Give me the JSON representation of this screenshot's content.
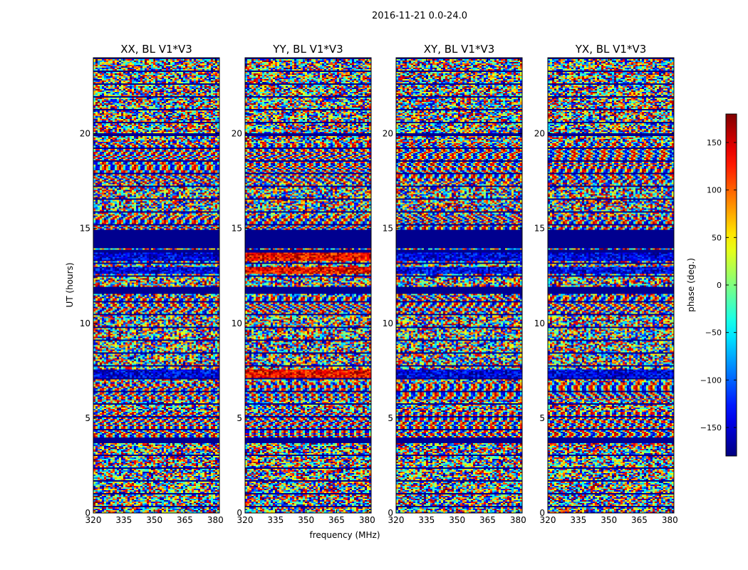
{
  "figure": {
    "suptitle": "2016-11-21 0.0-24.0",
    "xlabel": "frequency (MHz)",
    "ylabel": "UT (hours)",
    "colorbar_label": "phase (deg.)"
  },
  "chart_data": {
    "type": "heatmap",
    "colormap": "jet",
    "value_range": [
      -180,
      180
    ],
    "xlim": [
      320,
      382
    ],
    "ylim": [
      0,
      24
    ],
    "x_ticks": [
      320,
      335,
      350,
      365,
      380
    ],
    "y_ticks": [
      0,
      5,
      10,
      15,
      20
    ],
    "colorbar_ticks": [
      -150,
      -100,
      -50,
      0,
      50,
      100,
      150
    ],
    "colorbar_tick_labels": [
      "−150",
      "−100",
      "−50",
      "0",
      "50",
      "100",
      "150"
    ],
    "panels": [
      {
        "title": "XX, BL V1*V3"
      },
      {
        "title": "YY, BL V1*V3"
      },
      {
        "title": "XY, BL V1*V3"
      },
      {
        "title": "YX, BL V1*V3"
      }
    ],
    "flagged_bands_hours": [
      [
        13.95,
        14.9
      ],
      [
        13.75,
        13.9
      ],
      [
        11.55,
        11.9
      ],
      [
        3.7,
        3.95
      ],
      [
        19.85,
        20.05
      ]
    ],
    "strong_bands_hours": [
      [
        13.3,
        13.7
      ],
      [
        12.6,
        12.95
      ],
      [
        7.05,
        7.6
      ],
      [
        19.85,
        20.05
      ]
    ],
    "fringe_region_hours": [
      [
        3.9,
        5.3
      ],
      [
        5.9,
        6.9
      ],
      [
        10.6,
        11.4
      ],
      [
        14.9,
        15.7
      ],
      [
        17.4,
        19.5
      ]
    ]
  },
  "colors": {
    "flagged": "#00008f",
    "axes_edge": "#000000"
  }
}
